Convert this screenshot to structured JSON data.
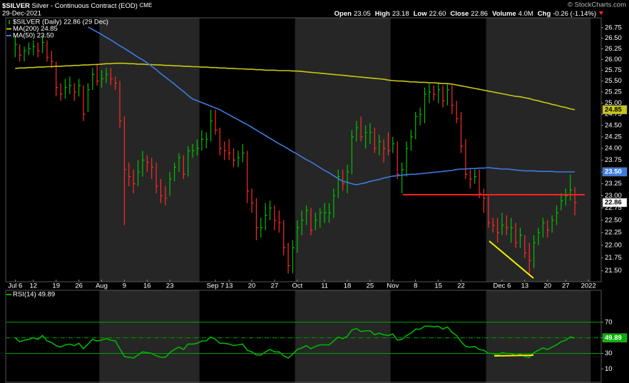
{
  "header": {
    "symbol": "$SILVER",
    "title": "Silver - Continuous Contract (EOD)",
    "exchange": "CME",
    "date": "29-Dec-2021",
    "copyright": "© StockCharts.com",
    "quote": [
      {
        "label": "Open",
        "value": "23.05"
      },
      {
        "label": "High",
        "value": "23.18"
      },
      {
        "label": "Low",
        "value": "22.60"
      },
      {
        "label": "Close",
        "value": "22.86"
      },
      {
        "label": "Volume",
        "value": "4.0M"
      },
      {
        "label": "Chg",
        "value": "-0.26 (-1.14%)"
      }
    ]
  },
  "chart_data": [
    {
      "type": "ohlc",
      "log_scale": true,
      "grid": false,
      "legend": "top-left",
      "categories": [
        "Jul 6",
        null,
        null,
        null,
        "12",
        null,
        null,
        null,
        null,
        "19",
        null,
        null,
        null,
        null,
        "26",
        null,
        null,
        null,
        null,
        "Aug",
        null,
        null,
        null,
        null,
        "9",
        null,
        null,
        null,
        null,
        "16",
        null,
        null,
        null,
        null,
        "23",
        null,
        null,
        null,
        null,
        null,
        null,
        null,
        null,
        null,
        "Sep 7",
        null,
        null,
        "13",
        null,
        null,
        null,
        null,
        "20",
        null,
        null,
        null,
        null,
        "27",
        null,
        null,
        null,
        null,
        "Oct",
        null,
        null,
        null,
        null,
        null,
        "11",
        null,
        null,
        null,
        null,
        "18",
        null,
        null,
        null,
        null,
        "25",
        null,
        null,
        null,
        null,
        "Nov",
        null,
        null,
        null,
        null,
        "8",
        null,
        null,
        null,
        null,
        "15",
        null,
        null,
        null,
        null,
        "22",
        null,
        null,
        null,
        null,
        null,
        null,
        null,
        null,
        "Dec 6",
        null,
        null,
        null,
        null,
        "13",
        null,
        null,
        null,
        null,
        "20",
        null,
        null,
        null,
        "27",
        null,
        null,
        null,
        null,
        "2022"
      ],
      "ylim": [
        21.29,
        26.99
      ],
      "yticks": [
        {
          "value": 21.5,
          "label": "21.50"
        },
        21.75,
        {
          "value": 22,
          "label": "22.00"
        },
        22.25,
        {
          "value": 22.5,
          "label": "22.50"
        },
        22.75,
        {
          "value": 23,
          "label": "23.00"
        },
        23.25,
        {
          "value": 23.5,
          "label": "23.50"
        },
        23.75,
        {
          "value": 24,
          "label": "24.00"
        },
        24.25,
        {
          "value": 24.5,
          "label": "24.50"
        },
        24.75,
        {
          "value": 25,
          "label": "25.00"
        },
        25.25,
        {
          "value": 25.5,
          "label": "25.50"
        },
        25.75,
        {
          "value": 26,
          "label": "26.00"
        },
        26.25,
        {
          "value": 26.5,
          "label": "26.50"
        },
        26.75
      ],
      "series": [
        {
          "type": "ohlc",
          "name": "$SILVER (Daily) 22.86 (29 Dec)",
          "color": "#ffffff",
          "color_up": "#00c000",
          "color_down": "#ff2a2a",
          "last_label": "22.86",
          "high": [
            26.55,
            26.35,
            26.3,
            26.4,
            26.45,
            26.4,
            26.55,
            26.45,
            26.2,
            25.95,
            25.45,
            25.55,
            25.6,
            25.45,
            25.55,
            25.4,
            25.45,
            25.8,
            25.9,
            25.75,
            25.8,
            25.8,
            25.6,
            25.5,
            24.7,
            23.7,
            23.55,
            23.75,
            23.95,
            23.85,
            23.8,
            23.7,
            23.35,
            23.2,
            23.5,
            23.7,
            23.9,
            23.85,
            24.05,
            24.1,
            24.2,
            24.4,
            24.35,
            24.85,
            24.85,
            24.45,
            24.15,
            24.2,
            24.0,
            23.95,
            24.1,
            23.95,
            23.15,
            22.95,
            22.55,
            22.85,
            22.9,
            22.8,
            22.7,
            22.5,
            22.05,
            22.1,
            22.5,
            22.7,
            22.8,
            22.75,
            22.65,
            22.75,
            22.85,
            22.85,
            23.15,
            23.55,
            23.55,
            23.65,
            24.4,
            24.6,
            24.7,
            24.5,
            24.55,
            24.45,
            24.3,
            24.2,
            24.35,
            24.25,
            24.15,
            23.7,
            24.15,
            24.4,
            24.8,
            24.9,
            25.35,
            25.45,
            25.4,
            25.45,
            25.4,
            25.45,
            25.4,
            25.05,
            24.8,
            24.2,
            23.55,
            23.55,
            23.55,
            23.15,
            23.0,
            22.55,
            22.55,
            22.65,
            22.6,
            22.55,
            22.45,
            22.35,
            22.2,
            22.05,
            22.2,
            22.35,
            22.55,
            22.5,
            22.6,
            22.8,
            23.05,
            23.15,
            23.45,
            23.18,
            null,
            null,
            null
          ],
          "low": [
            26.05,
            25.95,
            25.95,
            26.1,
            26.1,
            26.05,
            26.15,
            25.95,
            25.8,
            25.15,
            25.05,
            25.1,
            25.2,
            25.05,
            25.15,
            24.6,
            24.8,
            25.3,
            25.4,
            25.35,
            25.45,
            25.4,
            25.3,
            24.45,
            22.4,
            23.2,
            23.05,
            23.2,
            23.4,
            23.5,
            23.35,
            23.05,
            22.85,
            22.8,
            23.0,
            23.3,
            23.5,
            23.35,
            23.4,
            23.8,
            23.85,
            23.95,
            24.0,
            24.15,
            24.3,
            23.85,
            23.75,
            23.75,
            23.6,
            23.6,
            23.7,
            22.85,
            22.65,
            22.1,
            22.15,
            22.3,
            22.5,
            22.3,
            22.25,
            21.8,
            21.45,
            21.45,
            21.85,
            22.2,
            22.4,
            22.2,
            22.3,
            22.35,
            22.45,
            22.45,
            22.55,
            22.95,
            23.1,
            23.05,
            23.45,
            24.15,
            24.15,
            24.0,
            24.1,
            23.9,
            23.85,
            23.7,
            23.85,
            23.9,
            23.35,
            23.05,
            23.4,
            23.95,
            24.2,
            24.5,
            24.55,
            25.0,
            25.05,
            25.0,
            24.9,
            24.95,
            24.75,
            24.55,
            23.9,
            23.35,
            23.15,
            23.25,
            22.95,
            22.65,
            22.35,
            22.25,
            22.05,
            22.2,
            22.2,
            22.05,
            21.95,
            21.95,
            21.75,
            21.4,
            21.55,
            22.0,
            22.15,
            22.15,
            22.25,
            22.4,
            22.7,
            22.8,
            22.9,
            22.6,
            null,
            null,
            null
          ],
          "close": [
            26.35,
            26.1,
            26.2,
            26.25,
            26.3,
            26.2,
            26.4,
            26.05,
            25.95,
            25.35,
            25.2,
            25.35,
            25.4,
            25.25,
            25.4,
            24.75,
            25.3,
            25.65,
            25.5,
            25.55,
            25.65,
            25.55,
            25.45,
            24.6,
            23.55,
            23.4,
            23.25,
            23.5,
            23.75,
            23.7,
            23.6,
            23.2,
            23.0,
            22.95,
            23.35,
            23.6,
            23.8,
            23.45,
            23.95,
            23.95,
            24.0,
            24.2,
            24.2,
            24.6,
            24.4,
            24.0,
            23.95,
            23.9,
            23.75,
            23.8,
            23.9,
            23.1,
            22.85,
            22.35,
            22.35,
            22.6,
            22.75,
            22.5,
            22.45,
            21.95,
            21.6,
            21.95,
            22.35,
            22.5,
            22.7,
            22.3,
            22.5,
            22.65,
            22.65,
            22.65,
            23.0,
            23.4,
            23.25,
            23.5,
            24.25,
            24.45,
            24.25,
            24.35,
            24.35,
            24.0,
            24.15,
            24.0,
            23.95,
            24.1,
            23.45,
            23.55,
            24.0,
            24.25,
            24.7,
            24.75,
            25.2,
            25.25,
            25.2,
            25.3,
            25.05,
            25.3,
            24.95,
            24.65,
            24.05,
            23.45,
            23.35,
            23.4,
            23.05,
            22.95,
            22.45,
            22.4,
            22.25,
            22.4,
            22.35,
            22.35,
            22.05,
            22.2,
            21.85,
            21.7,
            22.05,
            22.25,
            22.45,
            22.3,
            22.5,
            22.65,
            22.9,
            23.0,
            23.12,
            22.86,
            null,
            null,
            null
          ]
        },
        {
          "type": "line",
          "name": "MA(200) 24.85",
          "color": "#c8c814",
          "last_label": "24.85",
          "values": [
            25.79,
            25.8,
            25.8,
            25.81,
            25.81,
            25.82,
            25.82,
            25.83,
            25.83,
            25.84,
            25.84,
            25.85,
            25.85,
            25.86,
            25.86,
            25.87,
            25.87,
            25.88,
            25.88,
            25.89,
            25.9,
            25.9,
            25.91,
            25.91,
            25.91,
            25.9,
            25.9,
            25.89,
            25.89,
            25.88,
            25.88,
            25.87,
            25.87,
            25.86,
            25.86,
            25.85,
            25.85,
            25.84,
            25.84,
            25.83,
            25.83,
            25.82,
            25.82,
            25.81,
            25.81,
            25.8,
            25.8,
            25.79,
            25.79,
            25.78,
            25.78,
            25.77,
            25.77,
            25.76,
            25.76,
            25.75,
            25.75,
            25.75,
            25.74,
            25.74,
            25.74,
            25.73,
            25.73,
            25.72,
            25.71,
            25.7,
            25.69,
            25.68,
            25.67,
            25.66,
            25.65,
            25.64,
            25.63,
            25.62,
            25.61,
            25.6,
            25.59,
            25.58,
            25.57,
            25.56,
            25.55,
            25.54,
            25.52,
            25.51,
            25.5,
            25.5,
            25.49,
            25.48,
            25.48,
            25.47,
            25.47,
            25.46,
            25.46,
            25.45,
            25.44,
            25.44,
            25.43,
            25.41,
            25.39,
            25.37,
            25.35,
            25.33,
            25.31,
            25.29,
            25.27,
            25.25,
            25.23,
            25.21,
            25.19,
            25.17,
            25.15,
            25.14,
            25.12,
            25.1,
            25.07,
            25.05,
            25.02,
            25.0,
            24.97,
            24.95,
            24.92,
            24.9,
            24.87,
            24.85,
            null,
            null,
            null
          ]
        },
        {
          "type": "line",
          "name": "MA(50) 23.50",
          "color": "#3c7ae0",
          "last_label": "23.50",
          "values": [
            null,
            null,
            null,
            null,
            null,
            null,
            null,
            null,
            null,
            null,
            null,
            null,
            null,
            null,
            null,
            null,
            26.77,
            26.71,
            26.65,
            26.59,
            26.52,
            26.46,
            26.39,
            26.32,
            26.26,
            26.19,
            26.12,
            26.05,
            25.99,
            25.92,
            25.84,
            25.76,
            25.67,
            25.59,
            25.51,
            25.43,
            25.34,
            25.26,
            25.17,
            25.09,
            25.05,
            25.01,
            24.97,
            24.93,
            24.89,
            24.85,
            24.79,
            24.74,
            24.68,
            24.63,
            24.57,
            24.52,
            24.46,
            24.4,
            24.34,
            24.28,
            24.22,
            24.16,
            24.1,
            24.05,
            23.99,
            23.93,
            23.88,
            23.82,
            23.76,
            23.71,
            23.65,
            23.59,
            23.53,
            23.48,
            23.42,
            23.36,
            23.3,
            23.28,
            23.25,
            23.23,
            23.25,
            23.27,
            23.3,
            23.32,
            23.34,
            23.37,
            23.39,
            23.41,
            23.42,
            23.43,
            23.44,
            23.45,
            23.45,
            23.46,
            23.47,
            23.48,
            23.49,
            23.5,
            23.51,
            23.52,
            23.53,
            23.55,
            23.56,
            23.56,
            23.57,
            23.57,
            23.58,
            23.58,
            23.59,
            23.58,
            23.57,
            23.56,
            23.56,
            23.55,
            23.54,
            23.53,
            23.52,
            23.52,
            23.52,
            23.51,
            23.51,
            23.51,
            23.51,
            23.5,
            23.5,
            23.5,
            23.5,
            23.5,
            null,
            null,
            null
          ]
        }
      ]
    },
    {
      "type": "line",
      "grid": true,
      "legend": "top-left",
      "ylim": [
        -8,
        111
      ],
      "yticks": [
        10,
        30,
        50,
        70
      ],
      "series": [
        {
          "type": "line",
          "name": "RSI(14) 49.89",
          "color": "#00b400",
          "last_label": "49.89",
          "values": [
            50,
            45,
            47,
            48,
            50,
            48,
            53,
            46,
            44,
            40,
            38,
            41,
            42,
            40,
            43,
            36,
            42,
            48,
            46,
            47,
            49,
            47,
            46,
            36,
            26,
            25,
            24,
            28,
            32,
            31,
            30,
            27,
            25,
            25,
            31,
            35,
            38,
            35,
            42,
            42,
            43,
            46,
            46,
            51,
            48,
            43,
            43,
            42,
            40,
            41,
            42,
            34,
            32,
            28,
            28,
            32,
            35,
            32,
            32,
            27,
            24,
            29,
            35,
            37,
            40,
            36,
            39,
            41,
            41,
            41,
            46,
            51,
            49,
            52,
            60,
            62,
            58,
            59,
            59,
            54,
            56,
            54,
            53,
            55,
            47,
            48,
            53,
            56,
            61,
            61,
            65,
            65,
            64,
            65,
            61,
            64,
            57,
            53,
            45,
            39,
            38,
            39,
            35,
            34,
            30,
            30,
            28,
            31,
            30,
            30,
            27,
            29,
            26,
            25,
            31,
            34,
            37,
            35,
            38,
            41,
            45,
            47,
            51,
            49.89,
            null,
            null,
            null
          ]
        }
      ]
    }
  ]
}
